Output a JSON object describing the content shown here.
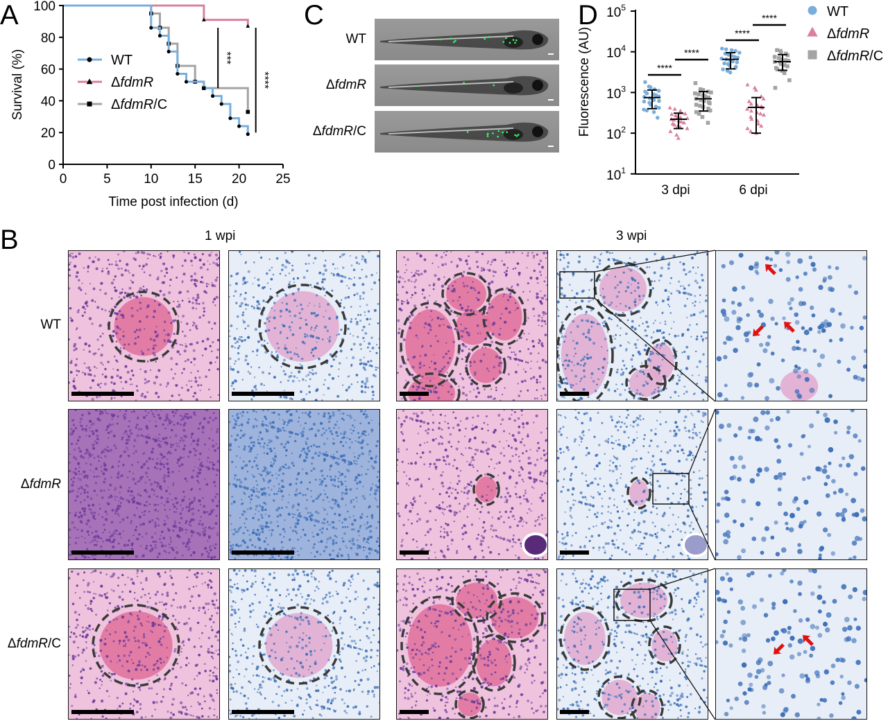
{
  "panels": {
    "a": "A",
    "b": "B",
    "c": "C",
    "d": "D"
  },
  "colors": {
    "wt": "#79aedc",
    "fdmR": "#d9809e",
    "comp": "#a3a3a3",
    "he_bg": "#efc7e0",
    "afb_bg": "#e4ebf5"
  },
  "chart_data": [
    {
      "type": "line",
      "panel": "A",
      "xlabel": "Time post infection (d)",
      "ylabel": "Survival (%)",
      "xlim": [
        0,
        25
      ],
      "ylim": [
        0,
        100
      ],
      "xticks": [
        0,
        5,
        10,
        15,
        20,
        25
      ],
      "yticks": [
        0,
        20,
        40,
        60,
        80,
        100
      ],
      "legend_position": "center-left",
      "series": [
        {
          "name_prefix": "Δ",
          "name": "WT",
          "italic": "",
          "suffix": "",
          "marker": "circle",
          "color_key": "wt",
          "x": [
            0,
            10,
            11,
            12,
            13,
            14,
            16,
            17,
            18,
            19,
            20,
            21
          ],
          "y": [
            100,
            86,
            81,
            71,
            57,
            52,
            48,
            43,
            38,
            29,
            24,
            19
          ]
        },
        {
          "name_prefix": "Δ",
          "name": "ΔfdmR",
          "italic": "fdmR",
          "suffix": "",
          "marker": "triangle",
          "color_key": "fdmR",
          "x": [
            0,
            16,
            21
          ],
          "y": [
            100,
            91,
            87
          ]
        },
        {
          "name_prefix": "Δ",
          "name": "ΔfdmR/C",
          "italic": "fdmR",
          "suffix": "/C",
          "marker": "square",
          "color_key": "comp",
          "x": [
            0,
            10,
            11,
            12,
            13,
            15,
            16,
            21
          ],
          "y": [
            100,
            95,
            86,
            76,
            62,
            52,
            48,
            33
          ]
        }
      ],
      "significance": [
        {
          "label": "***",
          "x": 17.6,
          "y_range": [
            48,
            86
          ]
        },
        {
          "label": "****",
          "x": 21.9,
          "y_range": [
            20,
            86
          ]
        }
      ]
    },
    {
      "type": "scatter",
      "panel": "D",
      "ylabel": "Fluorescence (AU)",
      "yscale": "log",
      "ylim": [
        10,
        100000
      ],
      "yticks": [
        {
          "base": "10",
          "exp": "1"
        },
        {
          "base": "10",
          "exp": "2"
        },
        {
          "base": "10",
          "exp": "3"
        },
        {
          "base": "10",
          "exp": "4"
        },
        {
          "base": "10",
          "exp": "5"
        }
      ],
      "categories": [
        "3 dpi",
        "6 dpi"
      ],
      "legend_position": "top-right",
      "legend": [
        {
          "name": "WT",
          "italic": "",
          "prefix": "",
          "suffix": "",
          "marker": "circle",
          "color_key": "wt"
        },
        {
          "name": "ΔfdmR",
          "italic": "fdmR",
          "prefix": "Δ",
          "suffix": "",
          "marker": "triangle",
          "color_key": "fdmR"
        },
        {
          "name": "ΔfdmR/C",
          "italic": "fdmR",
          "prefix": "Δ",
          "suffix": "/C",
          "marker": "square",
          "color_key": "comp"
        }
      ],
      "groups": [
        {
          "category": "3 dpi",
          "series": "WT",
          "mean": 750,
          "sd": [
            400,
            1150
          ],
          "points": [
            1800,
            1400,
            1350,
            1200,
            1100,
            1050,
            950,
            900,
            850,
            800,
            780,
            720,
            700,
            650,
            620,
            600,
            560,
            500,
            450,
            420,
            380,
            360,
            330,
            240
          ]
        },
        {
          "category": "3 dpi",
          "series": "ΔfdmR",
          "mean": 220,
          "sd": [
            130,
            310
          ],
          "points": [
            420,
            390,
            350,
            320,
            300,
            290,
            270,
            250,
            240,
            230,
            220,
            210,
            200,
            190,
            180,
            170,
            160,
            150,
            140,
            130,
            110,
            90,
            75
          ]
        },
        {
          "category": "3 dpi",
          "series": "ΔfdmR/C",
          "mean": 700,
          "sd": [
            350,
            1050
          ],
          "points": [
            1700,
            1200,
            1150,
            1050,
            1000,
            950,
            900,
            850,
            800,
            750,
            700,
            650,
            620,
            580,
            540,
            500,
            470,
            440,
            400,
            360,
            330,
            300,
            250,
            180
          ]
        },
        {
          "category": "6 dpi",
          "series": "WT",
          "mean": 6500,
          "sd": [
            3800,
            9500
          ],
          "points": [
            12000,
            11500,
            11000,
            10500,
            9500,
            9000,
            8500,
            8000,
            7500,
            7200,
            6800,
            6500,
            6200,
            5800,
            5500,
            5200,
            5000,
            4600,
            4300,
            4000,
            3700,
            3400,
            3100
          ]
        },
        {
          "category": "6 dpi",
          "series": "ΔfdmR",
          "mean": 430,
          "sd": [
            100,
            750
          ],
          "points": [
            1550,
            1300,
            1150,
            800,
            700,
            600,
            520,
            480,
            450,
            420,
            390,
            350,
            320,
            300,
            280,
            250,
            220,
            200,
            170,
            150,
            130,
            110,
            100
          ]
        },
        {
          "category": "6 dpi",
          "series": "ΔfdmR/C",
          "mean": 5700,
          "sd": [
            3500,
            8500
          ],
          "points": [
            11000,
            10500,
            9500,
            9000,
            8200,
            7500,
            7000,
            6500,
            6200,
            6000,
            5700,
            5400,
            5000,
            4700,
            4400,
            4000,
            3700,
            3400,
            3000,
            2000,
            1300
          ]
        }
      ],
      "significance": [
        {
          "label": "****",
          "pair": [
            "3 dpi WT",
            "3 dpi ΔfdmR"
          ]
        },
        {
          "label": "****",
          "pair": [
            "3 dpi ΔfdmR",
            "3 dpi ΔfdmR/C"
          ]
        },
        {
          "label": "****",
          "pair": [
            "6 dpi WT",
            "6 dpi ΔfdmR"
          ]
        },
        {
          "label": "****",
          "pair": [
            "6 dpi ΔfdmR",
            "6 dpi ΔfdmR/C"
          ]
        }
      ]
    }
  ],
  "panel_c": {
    "rows": [
      {
        "prefix": "",
        "italic": "",
        "suffix": "WT"
      },
      {
        "prefix": "Δ",
        "italic": "fdmR",
        "suffix": ""
      },
      {
        "prefix": "Δ",
        "italic": "fdmR",
        "suffix": "/C"
      }
    ]
  },
  "panel_b": {
    "columns": [
      "1 wpi",
      "3 wpi"
    ],
    "rows": [
      {
        "prefix": "",
        "italic": "",
        "suffix": "WT"
      },
      {
        "prefix": "Δ",
        "italic": "fdmR",
        "suffix": ""
      },
      {
        "prefix": "Δ",
        "italic": "fdmR",
        "suffix": "/C"
      }
    ]
  }
}
